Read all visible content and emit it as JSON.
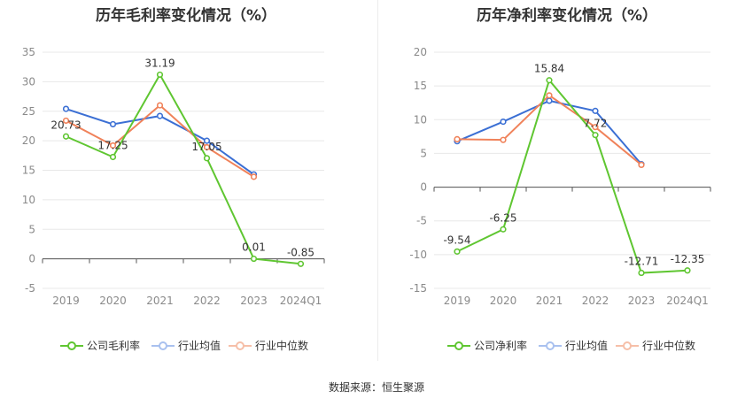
{
  "source_text": "数据来源：恒生聚源",
  "chart_data": [
    {
      "type": "line",
      "title": "历年毛利率变化情况（%）",
      "categories": [
        "2019",
        "2020",
        "2021",
        "2022",
        "2023",
        "2024Q1"
      ],
      "ylim": [
        -5,
        35
      ],
      "yticks": [
        -5,
        0,
        5,
        10,
        15,
        20,
        25,
        30,
        35
      ],
      "grid": true,
      "legend_position": "bottom",
      "series": [
        {
          "name": "公司毛利率",
          "color": "#5fc631",
          "values": [
            20.73,
            17.25,
            31.19,
            17.05,
            0.01,
            -0.85
          ],
          "show_labels": true
        },
        {
          "name": "行业均值",
          "color": "#3b6fd4",
          "values": [
            25.4,
            22.8,
            24.2,
            20.0,
            14.3,
            null
          ],
          "show_labels": false
        },
        {
          "name": "行业中位数",
          "color": "#f0825a",
          "values": [
            23.4,
            19.2,
            26.0,
            18.9,
            13.9,
            null
          ],
          "show_labels": false
        }
      ],
      "data_labels": [
        "20.73",
        "17.25",
        "31.19",
        "17.05",
        "0.01",
        "-0.85"
      ]
    },
    {
      "type": "line",
      "title": "历年净利率变化情况（%）",
      "categories": [
        "2019",
        "2020",
        "2021",
        "2022",
        "2023",
        "2024Q1"
      ],
      "ylim": [
        -15,
        20
      ],
      "yticks": [
        -15,
        -10,
        -5,
        0,
        5,
        10,
        15,
        20
      ],
      "grid": true,
      "legend_position": "bottom",
      "series": [
        {
          "name": "公司净利率",
          "color": "#5fc631",
          "values": [
            -9.54,
            -6.25,
            15.84,
            7.72,
            -12.71,
            -12.35
          ],
          "show_labels": true
        },
        {
          "name": "行业均值",
          "color": "#3b6fd4",
          "values": [
            6.8,
            9.7,
            12.8,
            11.3,
            3.4,
            null
          ],
          "show_labels": false
        },
        {
          "name": "行业中位数",
          "color": "#f0825a",
          "values": [
            7.1,
            7.0,
            13.6,
            8.9,
            3.3,
            null
          ],
          "show_labels": false
        }
      ],
      "data_labels": [
        "-9.54",
        "-6.25",
        "15.84",
        "7.72",
        "-12.71",
        "-12.35"
      ]
    }
  ]
}
